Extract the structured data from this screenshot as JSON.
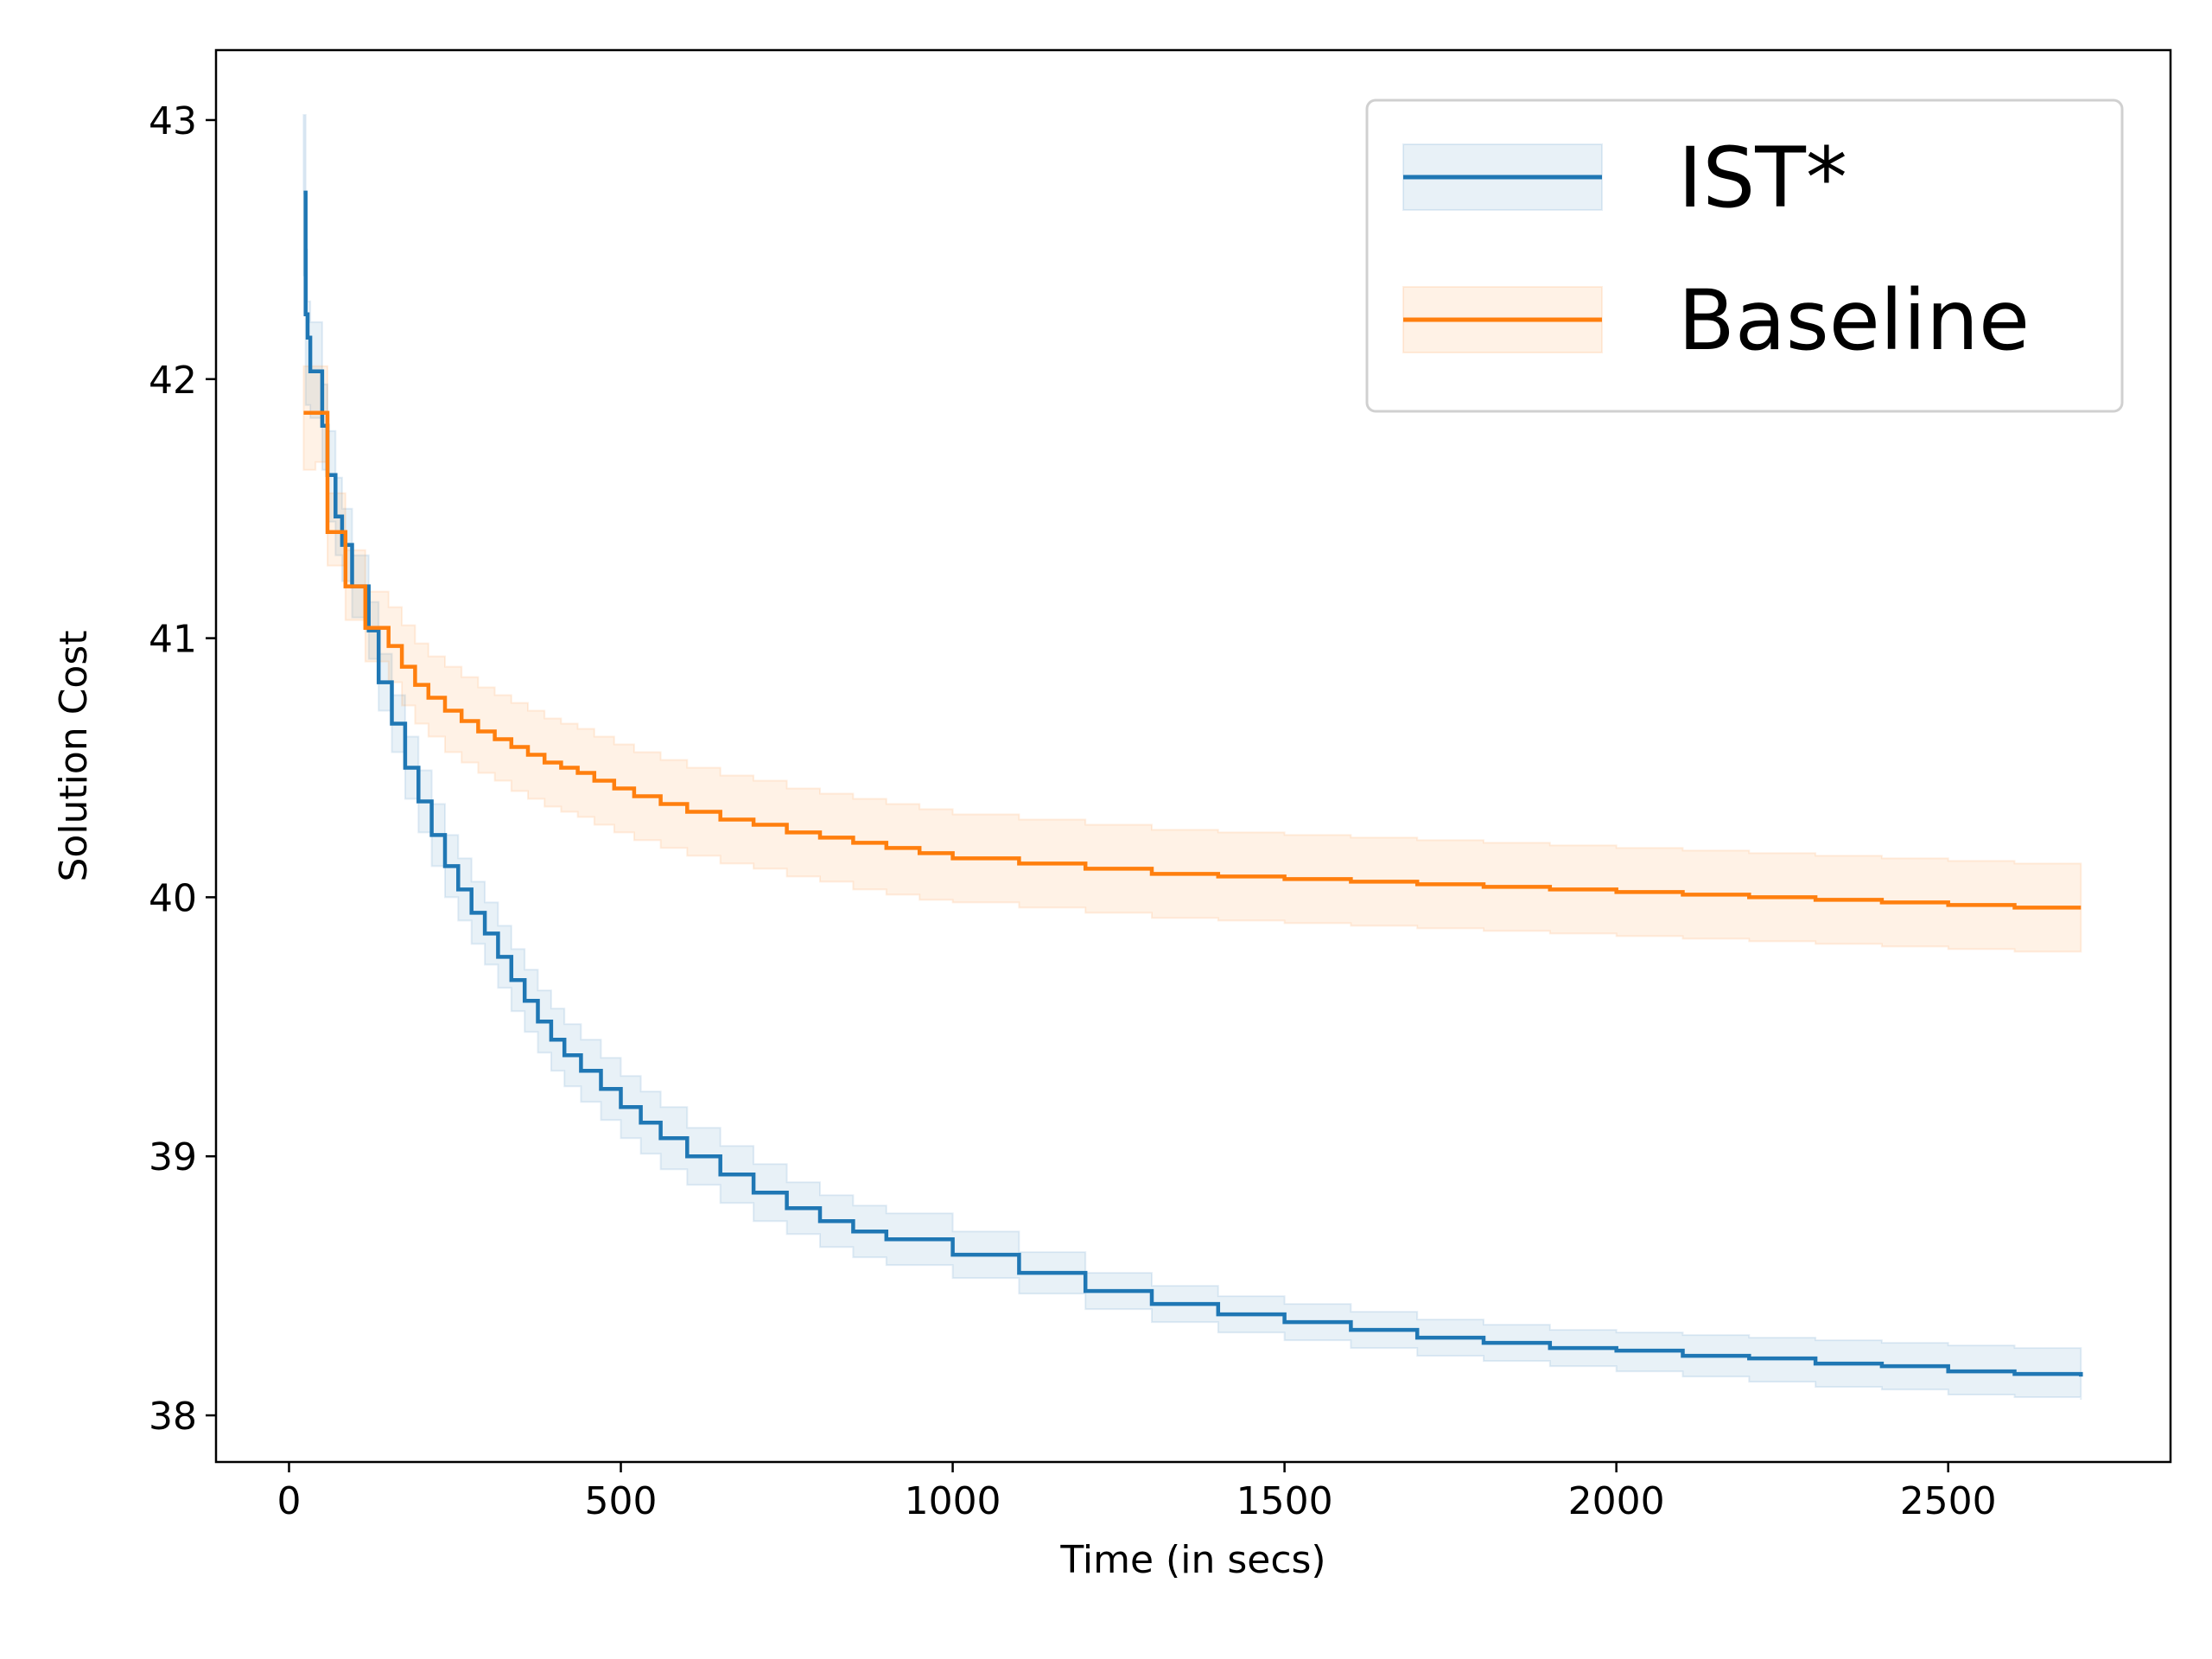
{
  "chart_data": {
    "type": "line",
    "title": "",
    "xlabel": "Time (in secs)",
    "ylabel": "Solution Cost",
    "xlim": [
      -110,
      2835
    ],
    "ylim": [
      37.82,
      43.27
    ],
    "xticks": [
      0,
      500,
      1000,
      1500,
      2000,
      2500
    ],
    "yticks": [
      38,
      39,
      40,
      41,
      42,
      43
    ],
    "grid": false,
    "legend_position": "top-right",
    "step": true,
    "band": "shaded confidence band around each series",
    "series": [
      {
        "name": "IST*",
        "color": "#1f77b4",
        "band_color": "#1f77b4",
        "x": [
          22,
          25,
          28,
          32,
          50,
          58,
          70,
          80,
          95,
          120,
          135,
          155,
          175,
          195,
          215,
          235,
          255,
          275,
          295,
          315,
          335,
          355,
          375,
          395,
          415,
          440,
          470,
          500,
          530,
          560,
          600,
          650,
          700,
          750,
          800,
          850,
          900,
          1000,
          1100,
          1200,
          1300,
          1400,
          1500,
          1600,
          1700,
          1800,
          1900,
          2000,
          2100,
          2200,
          2300,
          2400,
          2500,
          2600,
          2700
        ],
        "y": [
          42.72,
          42.25,
          42.16,
          42.03,
          41.82,
          41.63,
          41.47,
          41.36,
          41.2,
          41.03,
          40.83,
          40.67,
          40.5,
          40.37,
          40.24,
          40.12,
          40.03,
          39.94,
          39.86,
          39.77,
          39.68,
          39.6,
          39.52,
          39.45,
          39.39,
          39.33,
          39.26,
          39.19,
          39.13,
          39.07,
          39.0,
          38.93,
          38.86,
          38.8,
          38.75,
          38.71,
          38.68,
          38.62,
          38.55,
          38.48,
          38.43,
          38.39,
          38.36,
          38.33,
          38.3,
          38.28,
          38.26,
          38.25,
          38.23,
          38.22,
          38.2,
          38.19,
          38.17,
          38.16,
          38.15
        ],
        "lower": [
          42.4,
          41.9,
          41.9,
          41.85,
          41.65,
          41.45,
          41.32,
          41.22,
          41.08,
          40.92,
          40.72,
          40.56,
          40.38,
          40.25,
          40.12,
          40.0,
          39.91,
          39.82,
          39.74,
          39.65,
          39.56,
          39.48,
          39.4,
          39.33,
          39.27,
          39.21,
          39.14,
          39.07,
          39.01,
          38.95,
          38.89,
          38.82,
          38.75,
          38.7,
          38.65,
          38.61,
          38.58,
          38.53,
          38.47,
          38.41,
          38.36,
          38.32,
          38.29,
          38.26,
          38.23,
          38.21,
          38.19,
          38.17,
          38.15,
          38.13,
          38.11,
          38.1,
          38.08,
          38.07,
          38.06
        ],
        "upper": [
          43.02,
          42.5,
          42.3,
          42.22,
          41.98,
          41.8,
          41.62,
          41.5,
          41.32,
          41.14,
          40.94,
          40.78,
          40.62,
          40.49,
          40.36,
          40.24,
          40.15,
          40.06,
          39.98,
          39.89,
          39.8,
          39.72,
          39.64,
          39.57,
          39.51,
          39.45,
          39.38,
          39.31,
          39.25,
          39.19,
          39.11,
          39.04,
          38.97,
          38.9,
          38.85,
          38.81,
          38.78,
          38.71,
          38.63,
          38.55,
          38.5,
          38.46,
          38.43,
          38.4,
          38.37,
          38.35,
          38.33,
          38.32,
          38.31,
          38.3,
          38.29,
          38.28,
          38.27,
          38.26,
          38.24
        ]
      },
      {
        "name": "Baseline",
        "color": "#ff7f0e",
        "band_color": "#ff7f0e",
        "x": [
          22,
          40,
          58,
          85,
          100,
          115,
          130,
          150,
          170,
          190,
          210,
          235,
          260,
          285,
          310,
          335,
          360,
          385,
          410,
          435,
          460,
          490,
          520,
          560,
          600,
          650,
          700,
          750,
          800,
          850,
          900,
          950,
          1000,
          1100,
          1200,
          1300,
          1400,
          1500,
          1600,
          1700,
          1800,
          1900,
          2000,
          2100,
          2200,
          2300,
          2400,
          2500,
          2600,
          2700
        ],
        "y": [
          41.87,
          41.87,
          41.41,
          41.2,
          41.2,
          41.04,
          41.04,
          40.97,
          40.89,
          40.82,
          40.77,
          40.72,
          40.68,
          40.64,
          40.61,
          40.58,
          40.55,
          40.52,
          40.5,
          40.48,
          40.45,
          40.42,
          40.39,
          40.36,
          40.33,
          40.3,
          40.28,
          40.25,
          40.23,
          40.21,
          40.19,
          40.17,
          40.15,
          40.13,
          40.11,
          40.09,
          40.08,
          40.07,
          40.06,
          40.05,
          40.04,
          40.03,
          40.02,
          40.01,
          40.0,
          39.99,
          39.98,
          39.97,
          39.96,
          39.96
        ],
        "lower": [
          41.65,
          41.68,
          41.28,
          41.07,
          41.07,
          40.91,
          40.91,
          40.83,
          40.74,
          40.67,
          40.62,
          40.56,
          40.52,
          40.48,
          40.45,
          40.41,
          40.38,
          40.35,
          40.33,
          40.31,
          40.28,
          40.25,
          40.22,
          40.19,
          40.16,
          40.13,
          40.11,
          40.08,
          40.06,
          40.03,
          40.01,
          39.99,
          39.98,
          39.96,
          39.94,
          39.92,
          39.91,
          39.9,
          39.89,
          39.88,
          39.87,
          39.86,
          39.85,
          39.84,
          39.83,
          39.82,
          39.81,
          39.8,
          39.79,
          39.79
        ],
        "upper": [
          42.05,
          42.05,
          41.56,
          41.34,
          41.34,
          41.18,
          41.18,
          41.12,
          41.05,
          40.98,
          40.93,
          40.89,
          40.85,
          40.81,
          40.78,
          40.75,
          40.72,
          40.69,
          40.67,
          40.65,
          40.62,
          40.59,
          40.56,
          40.53,
          40.5,
          40.47,
          40.45,
          40.42,
          40.4,
          40.38,
          40.36,
          40.34,
          40.32,
          40.3,
          40.28,
          40.26,
          40.25,
          40.24,
          40.23,
          40.22,
          40.21,
          40.2,
          40.19,
          40.18,
          40.17,
          40.16,
          40.15,
          40.14,
          40.13,
          40.13
        ]
      }
    ]
  }
}
